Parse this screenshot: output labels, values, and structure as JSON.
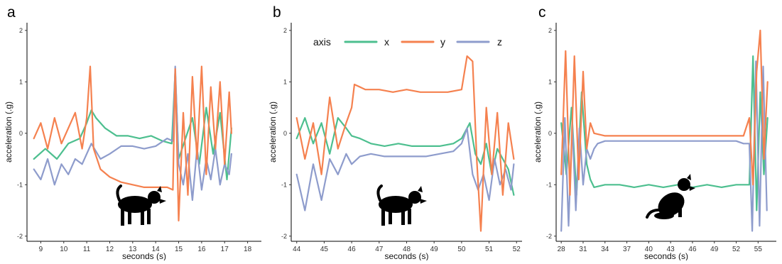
{
  "colors": {
    "x": "#4dbf8f",
    "y": "#f5814f",
    "z": "#8e9ccc",
    "axis": "#000000",
    "tick": "#333333"
  },
  "legend": {
    "title": "axis",
    "entries": [
      "x",
      "y",
      "z"
    ]
  },
  "chart_data": [
    {
      "panel_label": "a",
      "type": "line",
      "xlabel": "seconds (s)",
      "ylabel": "acceleration (.g)",
      "xlim": [
        8.4,
        18.6
      ],
      "ylim": [
        -2.1,
        2.15
      ],
      "xticks": [
        9,
        10,
        11,
        12,
        13,
        14,
        15,
        16,
        17,
        18
      ],
      "yticks": [
        -2,
        -1,
        0,
        1,
        2
      ],
      "grid": false,
      "series": [
        {
          "name": "x",
          "x": [
            8.7,
            9.2,
            9.7,
            10.2,
            10.7,
            11.0,
            11.2,
            11.4,
            11.8,
            12.3,
            12.8,
            13.3,
            13.8,
            14.3,
            14.7,
            14.85,
            15.0,
            15.3,
            15.6,
            15.9,
            16.2,
            16.5,
            16.8,
            17.1,
            17.3
          ],
          "y": [
            -0.5,
            -0.3,
            -0.5,
            -0.2,
            -0.1,
            0.2,
            0.45,
            0.3,
            0.1,
            -0.05,
            -0.05,
            -0.1,
            -0.05,
            -0.15,
            -0.2,
            1.2,
            -0.5,
            -0.1,
            0.3,
            -0.6,
            0.5,
            -0.4,
            0.4,
            -0.9,
            0.1
          ]
        },
        {
          "name": "y",
          "x": [
            8.7,
            9.0,
            9.3,
            9.6,
            9.9,
            10.2,
            10.5,
            10.8,
            11.0,
            11.15,
            11.3,
            11.6,
            12.0,
            12.5,
            13.0,
            13.5,
            14.0,
            14.5,
            14.75,
            14.85,
            15.0,
            15.2,
            15.4,
            15.6,
            15.8,
            16.0,
            16.2,
            16.4,
            16.6,
            16.8,
            17.0,
            17.2,
            17.3
          ],
          "y": [
            -0.1,
            0.2,
            -0.3,
            0.3,
            -0.2,
            0.1,
            0.4,
            -0.3,
            0.3,
            1.3,
            -0.3,
            -0.7,
            -0.85,
            -0.95,
            -1.0,
            -1.05,
            -1.05,
            -1.05,
            -1.1,
            1.25,
            -1.7,
            0.4,
            -1.2,
            1.1,
            -0.5,
            1.3,
            -0.8,
            0.9,
            -0.3,
            1.0,
            -0.6,
            0.8,
            0.0
          ]
        },
        {
          "name": "z",
          "x": [
            8.7,
            9.0,
            9.3,
            9.6,
            9.9,
            10.2,
            10.5,
            10.8,
            11.2,
            11.6,
            12.0,
            12.5,
            13.0,
            13.5,
            14.0,
            14.5,
            14.75,
            14.85,
            15.0,
            15.2,
            15.4,
            15.6,
            15.8,
            16.0,
            16.2,
            16.4,
            16.6,
            16.8,
            17.0,
            17.2,
            17.3
          ],
          "y": [
            -0.7,
            -0.9,
            -0.5,
            -1.0,
            -0.6,
            -0.8,
            -0.5,
            -0.6,
            -0.2,
            -0.5,
            -0.4,
            -0.25,
            -0.25,
            -0.3,
            -0.25,
            -0.1,
            -0.15,
            1.3,
            -0.6,
            -1.0,
            -0.4,
            -1.3,
            -0.3,
            -1.1,
            -0.5,
            -0.9,
            -0.3,
            -1.0,
            -0.6,
            -0.8,
            -0.4
          ]
        }
      ]
    },
    {
      "panel_label": "b",
      "type": "line",
      "xlabel": "seconds (s)",
      "ylabel": "acceleration (.g)",
      "xlim": [
        43.8,
        52.2
      ],
      "ylim": [
        -2.1,
        2.15
      ],
      "xticks": [
        44,
        45,
        46,
        47,
        48,
        49,
        50,
        51,
        52
      ],
      "yticks": [
        -2,
        -1,
        0,
        1,
        2
      ],
      "grid": false,
      "series": [
        {
          "name": "x",
          "x": [
            44.0,
            44.3,
            44.6,
            44.9,
            45.2,
            45.5,
            45.8,
            46.0,
            46.3,
            46.7,
            47.2,
            47.7,
            48.2,
            48.7,
            49.2,
            49.7,
            50.0,
            50.3,
            50.5,
            50.7,
            50.9,
            51.1,
            51.3,
            51.5,
            51.7,
            51.9
          ],
          "y": [
            -0.1,
            0.3,
            -0.2,
            0.2,
            -0.4,
            0.3,
            0.1,
            -0.05,
            -0.1,
            -0.2,
            -0.25,
            -0.2,
            -0.25,
            -0.25,
            -0.25,
            -0.2,
            -0.1,
            0.2,
            -0.4,
            -0.6,
            -0.2,
            -0.8,
            -0.3,
            -0.5,
            -0.7,
            -1.2
          ]
        },
        {
          "name": "y",
          "x": [
            44.0,
            44.3,
            44.6,
            44.9,
            45.2,
            45.5,
            45.8,
            46.0,
            46.1,
            46.5,
            47.0,
            47.5,
            48.0,
            48.5,
            49.0,
            49.5,
            50.0,
            50.2,
            50.4,
            50.55,
            50.7,
            50.9,
            51.1,
            51.3,
            51.5,
            51.7,
            51.9
          ],
          "y": [
            0.3,
            -0.5,
            0.2,
            -0.8,
            0.7,
            -0.3,
            0.2,
            0.5,
            0.95,
            0.85,
            0.85,
            0.8,
            0.85,
            0.8,
            0.8,
            0.8,
            0.85,
            1.5,
            1.4,
            -0.5,
            -1.9,
            0.5,
            -0.8,
            0.4,
            -1.2,
            0.2,
            -0.5
          ]
        },
        {
          "name": "z",
          "x": [
            44.0,
            44.3,
            44.6,
            44.9,
            45.2,
            45.5,
            45.8,
            46.0,
            46.3,
            46.7,
            47.2,
            47.7,
            48.2,
            48.7,
            49.2,
            49.7,
            50.0,
            50.2,
            50.4,
            50.6,
            50.8,
            51.0,
            51.2,
            51.4,
            51.6,
            51.8,
            51.9
          ],
          "y": [
            -0.8,
            -1.5,
            -0.6,
            -1.3,
            -0.5,
            -0.8,
            -0.4,
            -0.6,
            -0.45,
            -0.4,
            -0.45,
            -0.45,
            -0.45,
            -0.45,
            -0.4,
            -0.35,
            -0.2,
            0.1,
            -0.8,
            -1.1,
            -0.8,
            -1.3,
            -0.5,
            -1.0,
            -0.7,
            -1.1,
            -0.6
          ]
        }
      ]
    },
    {
      "panel_label": "c",
      "type": "line",
      "xlabel": "seconds (s)",
      "ylabel": "acceleration (.g)",
      "xlim": [
        27.3,
        57.5
      ],
      "ylim": [
        -2.1,
        2.15
      ],
      "xticks": [
        28,
        31,
        34,
        37,
        40,
        43,
        46,
        49,
        52,
        55
      ],
      "yticks": [
        -2,
        -1,
        0,
        1,
        2
      ],
      "grid": false,
      "series": [
        {
          "name": "x",
          "x": [
            28.0,
            28.7,
            29.4,
            30.1,
            30.8,
            31.5,
            32.0,
            32.5,
            34.0,
            36.0,
            38.0,
            40.0,
            42.0,
            44.0,
            46.0,
            48.0,
            50.0,
            52.0,
            53.0,
            53.8,
            54.3,
            54.8,
            55.3,
            55.8,
            56.3
          ],
          "y": [
            0.2,
            -0.8,
            0.5,
            -1.2,
            0.8,
            -0.6,
            -0.9,
            -1.05,
            -1.0,
            -1.0,
            -1.05,
            -1.0,
            -1.05,
            -1.0,
            -1.05,
            -1.0,
            -1.05,
            -1.0,
            -1.0,
            -1.0,
            1.5,
            -1.5,
            0.8,
            -0.8,
            0.3
          ]
        },
        {
          "name": "y",
          "x": [
            28.0,
            28.6,
            29.2,
            29.8,
            30.4,
            31.0,
            31.5,
            32.0,
            32.5,
            34.0,
            36.0,
            38.0,
            40.0,
            42.0,
            44.0,
            46.0,
            48.0,
            50.0,
            52.0,
            53.0,
            53.8,
            54.3,
            54.8,
            55.3,
            55.8,
            56.3
          ],
          "y": [
            -0.8,
            1.6,
            -1.2,
            1.5,
            -0.9,
            1.2,
            -0.3,
            0.2,
            0.0,
            -0.05,
            -0.05,
            -0.05,
            -0.05,
            -0.05,
            -0.05,
            -0.05,
            -0.05,
            -0.05,
            -0.05,
            -0.05,
            0.3,
            -1.0,
            1.2,
            2.0,
            -0.5,
            1.0
          ]
        },
        {
          "name": "z",
          "x": [
            28.0,
            28.5,
            29.0,
            29.5,
            30.0,
            30.5,
            31.0,
            31.5,
            32.0,
            32.5,
            33.0,
            34.0,
            36.0,
            38.0,
            40.0,
            42.0,
            44.0,
            46.0,
            48.0,
            50.0,
            52.0,
            53.0,
            53.8,
            54.2,
            54.7,
            55.2,
            55.7,
            56.2
          ],
          "y": [
            -1.9,
            0.3,
            -1.8,
            0.2,
            -1.5,
            0.1,
            -1.0,
            -0.3,
            -0.5,
            -0.3,
            -0.2,
            -0.15,
            -0.15,
            -0.15,
            -0.15,
            -0.15,
            -0.15,
            -0.15,
            -0.15,
            -0.15,
            -0.15,
            -0.2,
            -0.2,
            -1.9,
            1.4,
            -1.8,
            1.3,
            -1.5
          ]
        }
      ]
    }
  ]
}
